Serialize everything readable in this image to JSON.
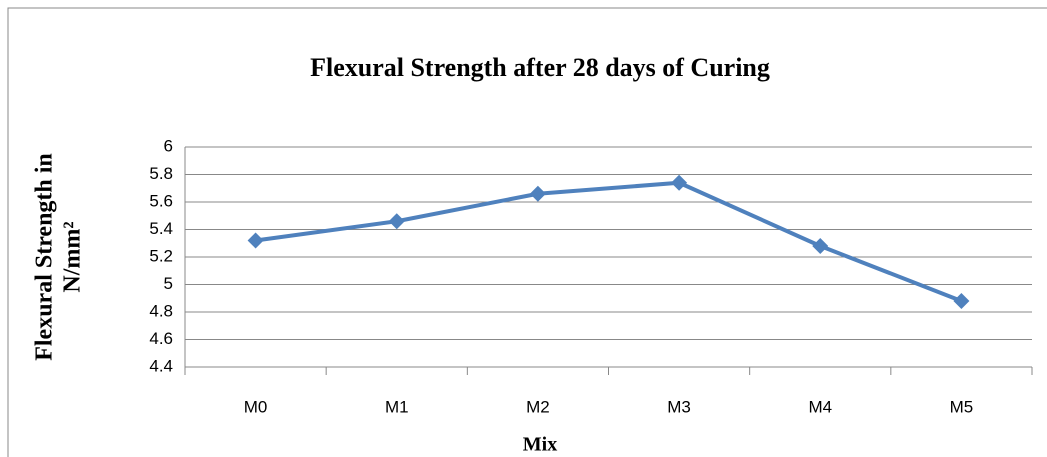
{
  "chart_data": {
    "type": "line",
    "title": "Flexural Strength after 28 days of Curing",
    "x_label": "Mix",
    "y_label": [
      "Flexural Strength in",
      "N/mm²"
    ],
    "categories": [
      "M0",
      "M1",
      "M2",
      "M3",
      "M4",
      "M5"
    ],
    "values": [
      5.32,
      5.46,
      5.66,
      5.74,
      5.28,
      4.88
    ],
    "color": "#4f81bd",
    "ylim": [
      4.4,
      6
    ],
    "yticks": [
      4.4,
      4.6,
      4.8,
      5,
      5.2,
      5.4,
      5.6,
      5.8,
      6
    ],
    "grid": true
  }
}
